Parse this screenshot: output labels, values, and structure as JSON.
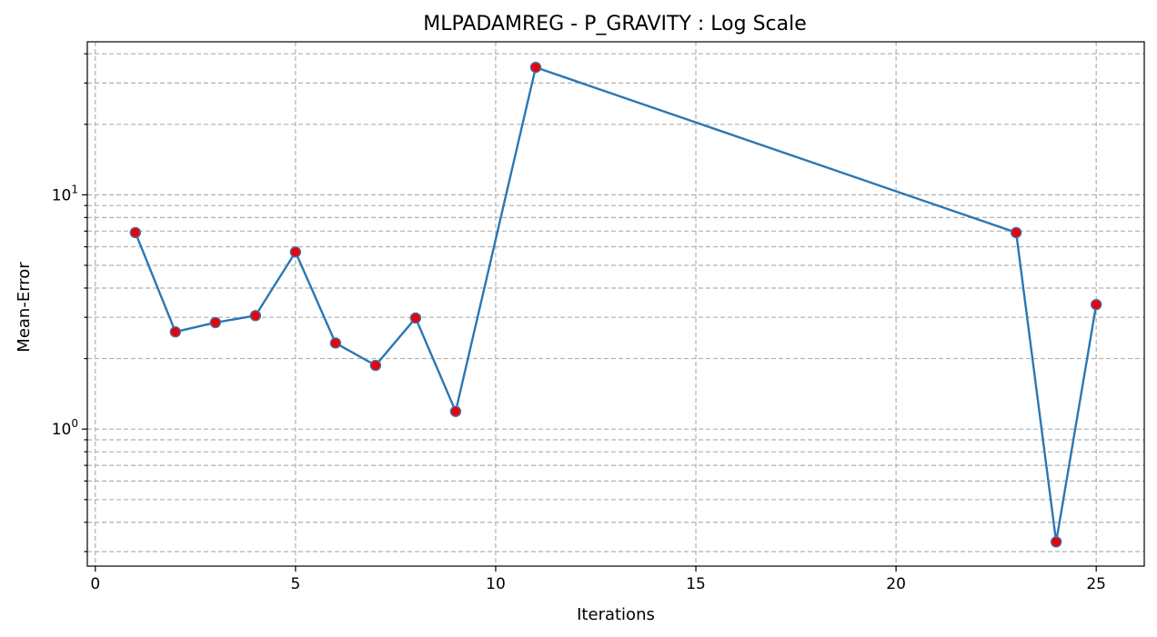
{
  "chart_data": {
    "type": "line",
    "title": "MLPADAMREG - P_GRAVITY : Log Scale",
    "xlabel": "Iterations",
    "ylabel": "Mean-Error",
    "yscale": "log",
    "xlim": [
      -0.2,
      26.2
    ],
    "ylim": [
      0.26,
      45
    ],
    "x_ticks": [
      0,
      5,
      10,
      15,
      20,
      25
    ],
    "y_major_ticks": [
      {
        "value": 1,
        "base": "10",
        "exp": "0"
      },
      {
        "value": 10,
        "base": "10",
        "exp": "1"
      }
    ],
    "grid": "both-major-minor",
    "series": [
      {
        "x": [
          1,
          2,
          3,
          4,
          5,
          6,
          7,
          8,
          9,
          11,
          23,
          24,
          25
        ],
        "y": [
          6.9,
          2.6,
          2.85,
          3.05,
          5.7,
          2.33,
          1.87,
          2.98,
          1.19,
          35,
          6.9,
          0.33,
          3.4
        ]
      }
    ],
    "colors": {
      "line": "#2a77b4",
      "marker_fill": "#e8000b",
      "marker_edge": "#4a6fa5",
      "grid": "#b0b0b0"
    }
  }
}
